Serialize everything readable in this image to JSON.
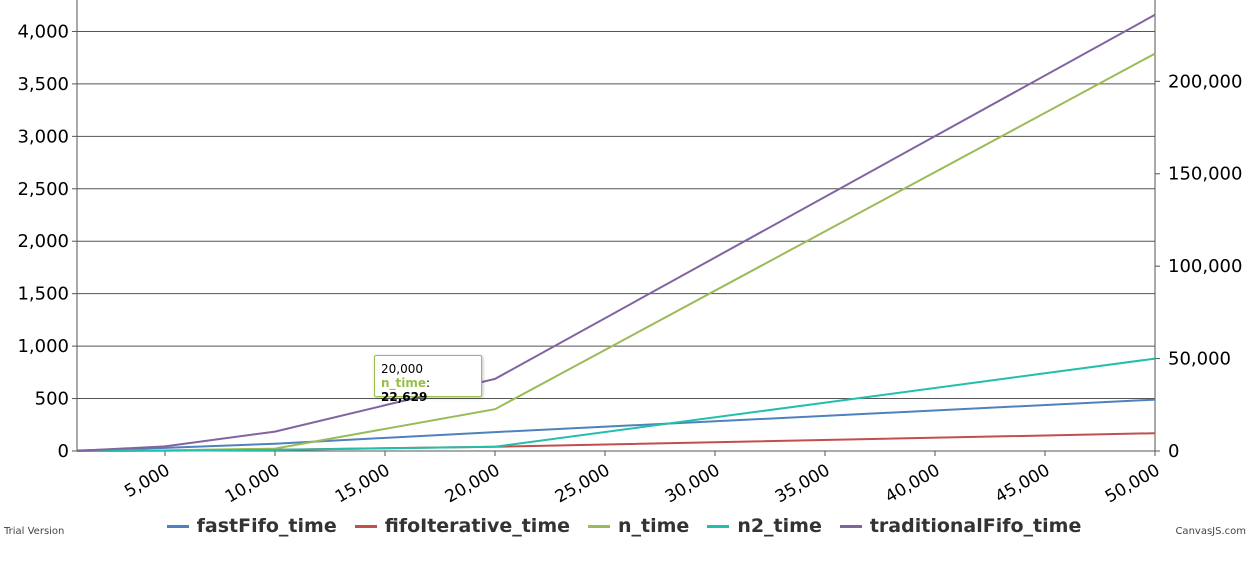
{
  "chart_data": {
    "type": "line",
    "title": "",
    "xlabel": "",
    "ylabel": "",
    "x": [
      1000,
      5000,
      10000,
      20000,
      50000
    ],
    "x_ticks": [
      "5,000",
      "10,000",
      "15,000",
      "20,000",
      "25,000",
      "30,000",
      "35,000",
      "40,000",
      "45,000",
      "50,000"
    ],
    "y_left_ticks": [
      "0",
      "500",
      "1,000",
      "1,500",
      "2,000",
      "2,500",
      "3,000",
      "3,500",
      "4,000"
    ],
    "y_right_ticks": [
      "0",
      "50,000",
      "100,000",
      "150,000",
      "200,000"
    ],
    "xlim": [
      1000,
      50000
    ],
    "ylim_left": [
      0,
      4300
    ],
    "ylim_right": [
      0,
      244000
    ],
    "grid": true,
    "legend_position": "bottom",
    "series": [
      {
        "name": "fastFifo_time",
        "axis": "left",
        "color": "#4f81bc",
        "values": [
          5,
          30,
          70,
          180,
          490
        ]
      },
      {
        "name": "fifoIterative_time",
        "axis": "left",
        "color": "#c0504e",
        "values": [
          1,
          5,
          12,
          40,
          170
        ]
      },
      {
        "name": "n_time",
        "axis": "right",
        "color": "#9bbb58",
        "values": [
          10,
          300,
          1300,
          22629,
          215000
        ]
      },
      {
        "name": "n2_time",
        "axis": "right",
        "color": "#23bfaa",
        "values": [
          5,
          150,
          600,
          2300,
          50000
        ]
      },
      {
        "name": "traditionalFifo_time",
        "axis": "right",
        "color": "#8064a1",
        "values": [
          50,
          2500,
          10500,
          39000,
          236000
        ]
      }
    ],
    "tooltip": {
      "x_label": "20,000",
      "series_name": "n_time",
      "value": "22,629",
      "color": "#97bf4a"
    }
  },
  "footer": {
    "trial_text": "Trial Version",
    "credit_text": "CanvasJS.com"
  }
}
